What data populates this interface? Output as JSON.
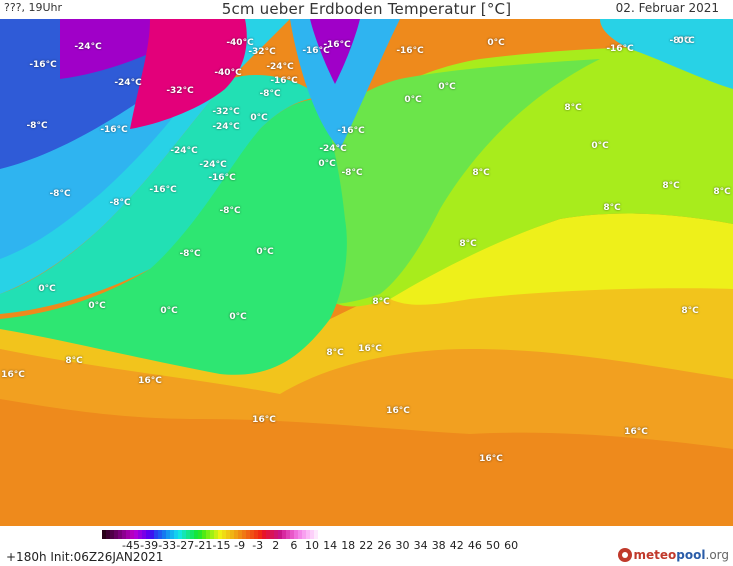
{
  "header": {
    "left": "???, 19Uhr",
    "title": "5cm ueber Erdboden Temperatur [°C]",
    "date": "02. Februar 2021"
  },
  "footer": {
    "init": "+180h  Init:06Z26JAN2021",
    "logo_main": "meteo",
    "logo_accent": "pool",
    "logo_suffix": ".org"
  },
  "legend": {
    "ticks": [
      "-45",
      "-39",
      "-33",
      "-27",
      "-21",
      "-15",
      "-9",
      "-3",
      "2",
      "6",
      "10",
      "14",
      "18",
      "22",
      "26",
      "30",
      "34",
      "38",
      "42",
      "46",
      "50",
      "60"
    ],
    "colors": [
      "#280018",
      "#3c0030",
      "#500048",
      "#640060",
      "#780078",
      "#8c0090",
      "#a000a8",
      "#b400c0",
      "#b000d8",
      "#9400e0",
      "#7800e8",
      "#5a00f0",
      "#3c14f0",
      "#2840f0",
      "#1e5af0",
      "#1478f0",
      "#1496f0",
      "#14b4f0",
      "#14d0f0",
      "#14e6e0",
      "#14e6b4",
      "#14e68c",
      "#14e664",
      "#14e63c",
      "#28e628",
      "#50ea14",
      "#78ee14",
      "#a0f014",
      "#c8f014",
      "#f0f014",
      "#f0dc14",
      "#f0c814",
      "#f0b414",
      "#f0a014",
      "#f08c14",
      "#f07814",
      "#f06414",
      "#f05014",
      "#f03c14",
      "#f02814",
      "#e81428",
      "#e01440",
      "#d81458",
      "#d01470",
      "#c81488",
      "#d828a0",
      "#e040b4",
      "#e858c8",
      "#f070dc",
      "#f488e8",
      "#f8a0f0",
      "#fbb8f6",
      "#fdd0fa",
      "#fee8fd"
    ]
  },
  "map": {
    "colors": {
      "magenta": "#e3007a",
      "deep_purple": "#a000c8",
      "blue": "#2f5bd7",
      "cyan": "#2fb4f0",
      "sky": "#28d2e6",
      "aqua": "#22e0b4",
      "green": "#2ee672",
      "light_green": "#6be54a",
      "lime": "#a8ec1c",
      "yellow": "#eef01a",
      "gold": "#f2c41c",
      "orange": "#f2a020",
      "dark_orange": "#ee8a1c"
    },
    "labels": [
      {
        "text": "-24°C"
      },
      {
        "text": "-40°C"
      },
      {
        "text": "-32°C"
      },
      {
        "text": "-16°C"
      },
      {
        "text": "-24°C"
      },
      {
        "text": "-16°C"
      },
      {
        "text": "0°C"
      },
      {
        "text": "-16°C"
      },
      {
        "text": "-8°C"
      },
      {
        "text": "-16°C"
      },
      {
        "text": "-24°C"
      },
      {
        "text": "-32°C"
      },
      {
        "text": "-40°C"
      },
      {
        "text": "-24°C"
      },
      {
        "text": "-16°C"
      },
      {
        "text": "-8°C"
      },
      {
        "text": "0°C"
      },
      {
        "text": "0°C"
      },
      {
        "text": "8°C"
      },
      {
        "text": "-8°C"
      },
      {
        "text": "-16°C"
      },
      {
        "text": "-32°C"
      },
      {
        "text": "-24°C"
      },
      {
        "text": "0°C"
      },
      {
        "text": "-16°C"
      },
      {
        "text": "-24°C"
      },
      {
        "text": "0°C"
      },
      {
        "text": "0°C"
      },
      {
        "text": "-24°C"
      },
      {
        "text": "-16°C"
      },
      {
        "text": "-8°C"
      },
      {
        "text": "8°C"
      },
      {
        "text": "-8°C"
      },
      {
        "text": "-16°C"
      },
      {
        "text": "-8°C"
      },
      {
        "text": "8°C"
      },
      {
        "text": "8°C"
      },
      {
        "text": "-8°C"
      },
      {
        "text": "0°C"
      },
      {
        "text": "8°C"
      },
      {
        "text": "0°C"
      },
      {
        "text": "0°C"
      },
      {
        "text": "0°C"
      },
      {
        "text": "0°C"
      },
      {
        "text": "8°C"
      },
      {
        "text": "8°C"
      },
      {
        "text": "8°C"
      },
      {
        "text": "16°C"
      },
      {
        "text": "16°C"
      },
      {
        "text": "8°C"
      },
      {
        "text": "8°C"
      },
      {
        "text": "16°C"
      },
      {
        "text": "16°C"
      },
      {
        "text": "16°C"
      },
      {
        "text": "16°C"
      },
      {
        "text": "16°C"
      },
      {
        "text": "-16°C"
      },
      {
        "text": "-8°C"
      },
      {
        "text": "0°C"
      }
    ]
  }
}
